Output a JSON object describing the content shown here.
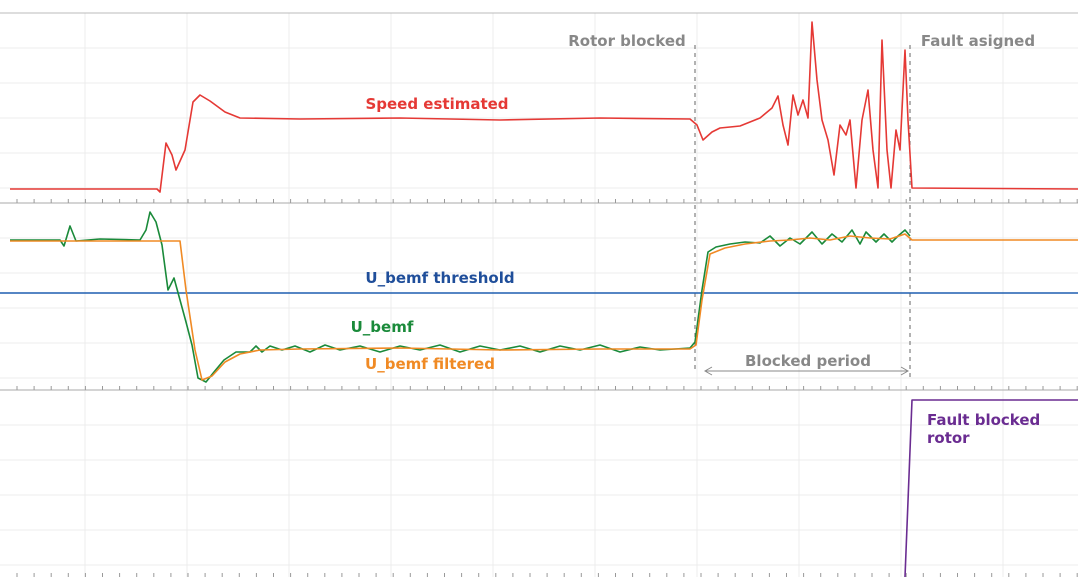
{
  "annotations": {
    "rotor_blocked": "Rotor blocked",
    "fault_asigned": "Fault asigned",
    "blocked_period": "Blocked period"
  },
  "traces": {
    "speed": "Speed estimated",
    "threshold": "U_bemf threshold",
    "bemf": "U_bemf",
    "bemf_filtered": "U_bemf filtered",
    "fault": [
      "Fault blocked",
      "rotor"
    ]
  }
}
